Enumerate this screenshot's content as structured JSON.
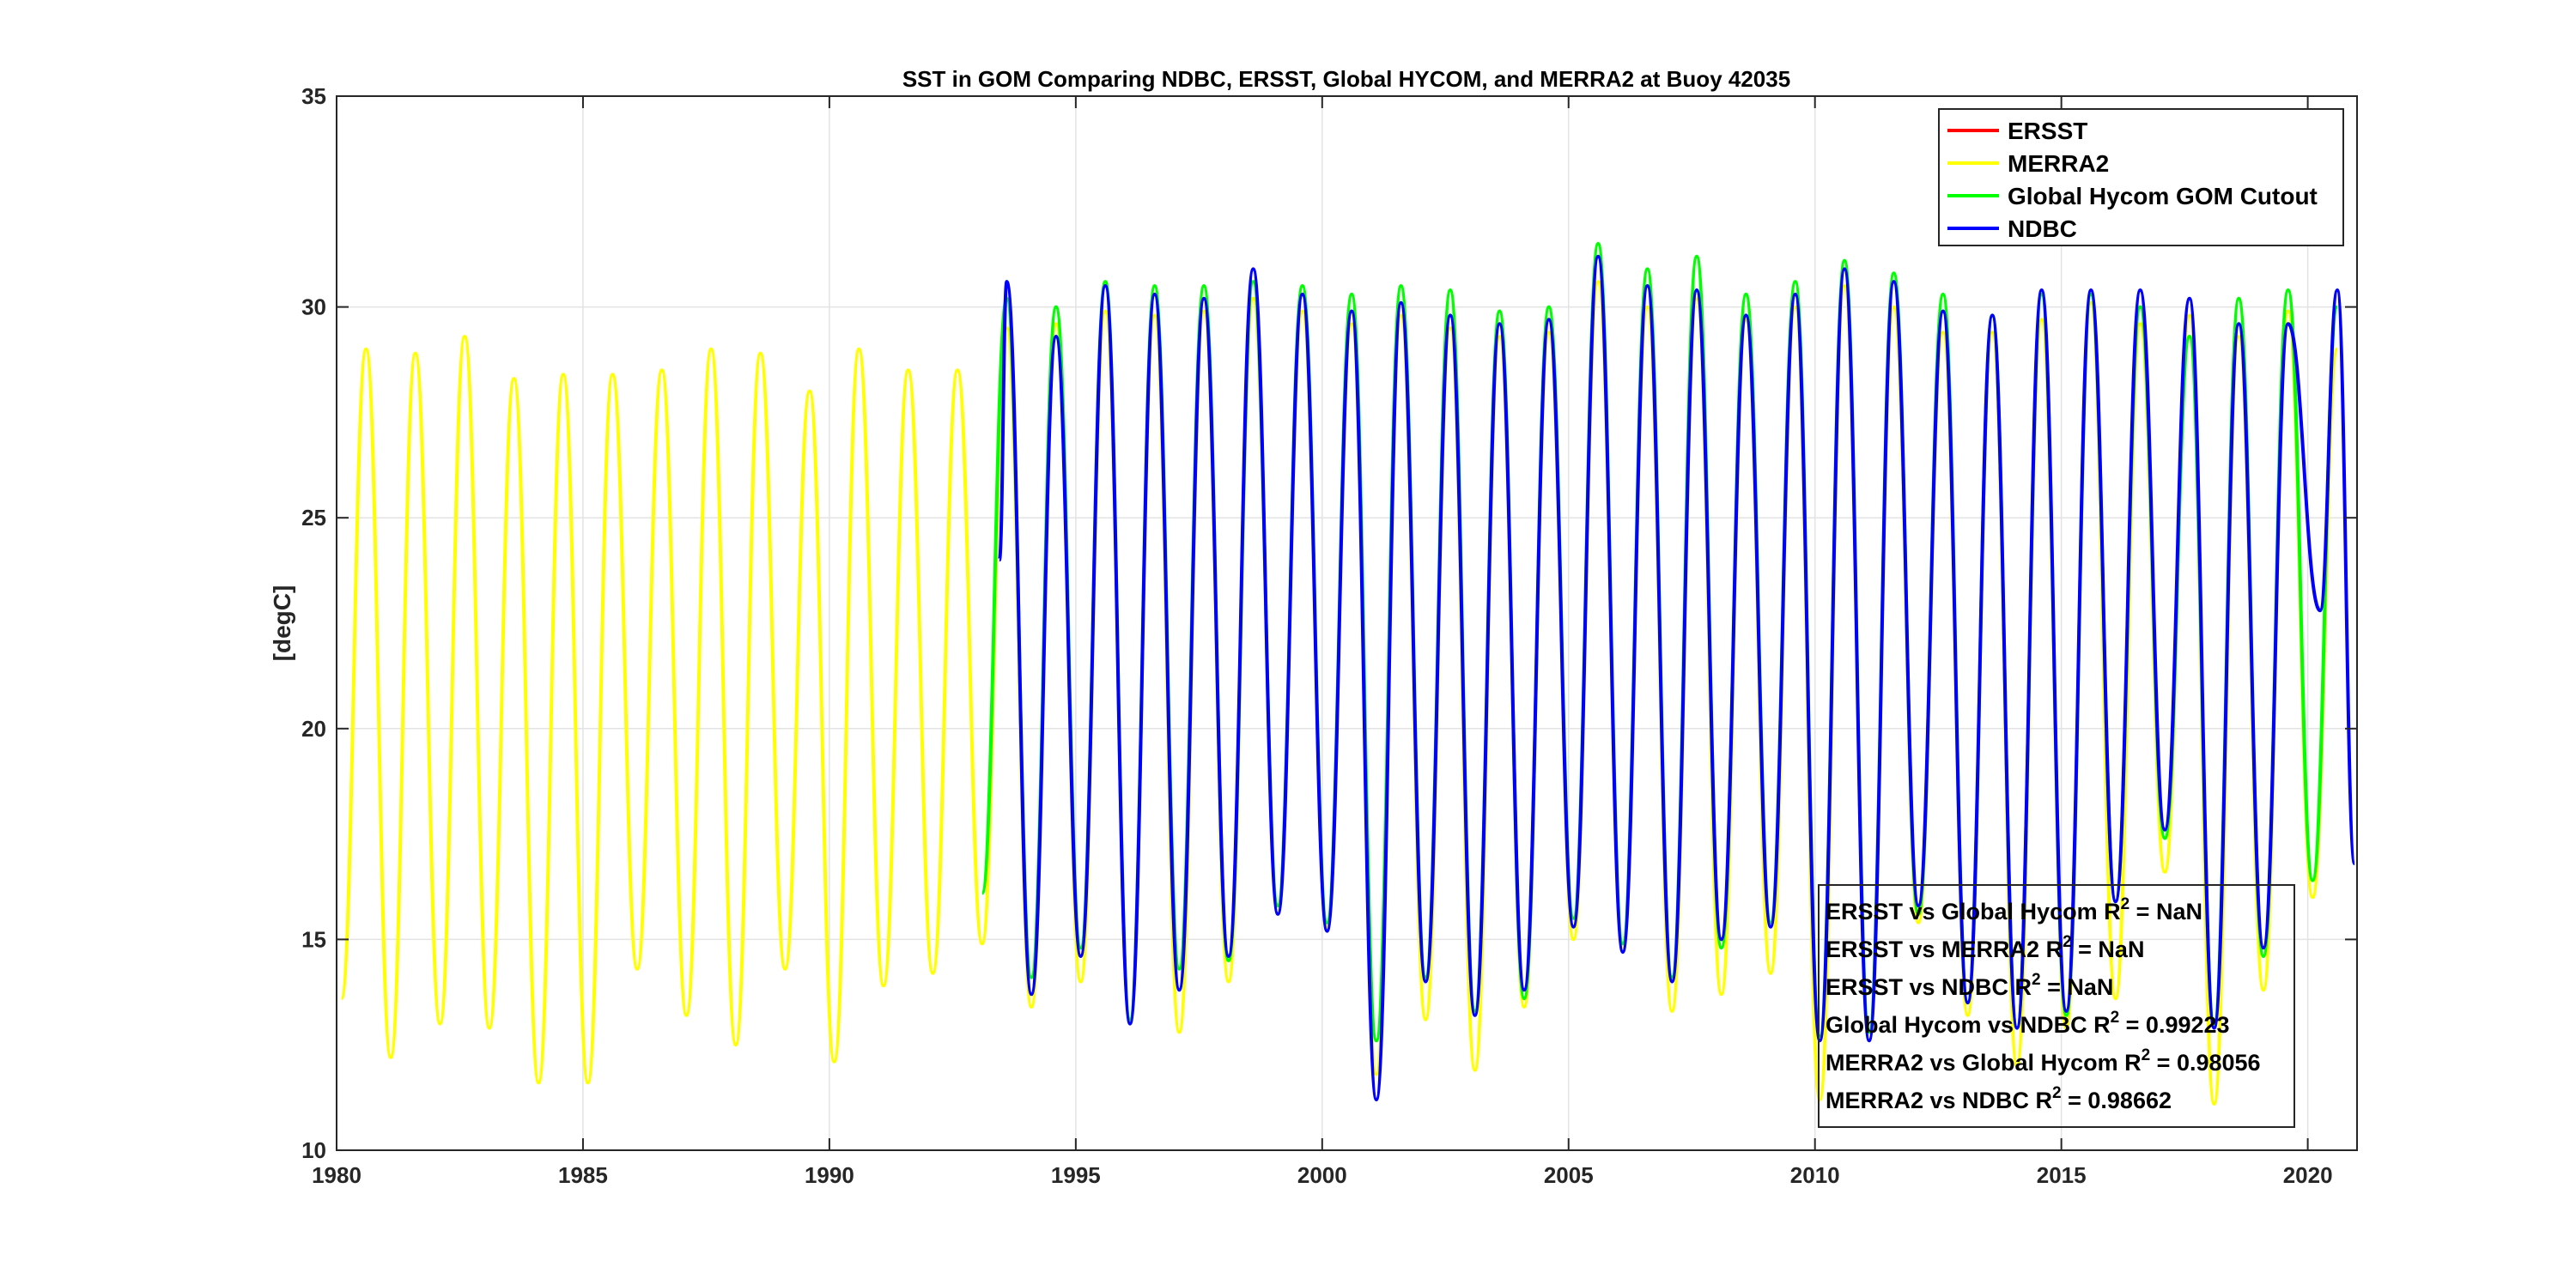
{
  "chart_data": {
    "type": "line",
    "title": "SST in GOM Comparing NDBC, ERSST, Global HYCOM, and MERRA2 at Buoy  42035",
    "xlabel": "",
    "ylabel": "[degC]",
    "xlim": [
      1980,
      2021
    ],
    "ylim": [
      10,
      35
    ],
    "grid": true,
    "legend_position": "top-right",
    "x_ticks": [
      1980,
      1985,
      1990,
      1995,
      2000,
      2005,
      2010,
      2015,
      2020
    ],
    "y_ticks": [
      10,
      15,
      20,
      25,
      30,
      35
    ],
    "x_tick_labels": [
      "1980",
      "1985",
      "1990",
      "1995",
      "2000",
      "2005",
      "2010",
      "2015",
      "2020"
    ],
    "y_tick_labels": [
      "10",
      "15",
      "20",
      "25",
      "30",
      "35"
    ],
    "series": [
      {
        "name": "ERSST",
        "color": "#ff0000",
        "peaks": [],
        "troughs": []
      },
      {
        "name": "MERRA2",
        "color": "#ffff00",
        "peaks": [
          [
            1980.6,
            29.0
          ],
          [
            1981.6,
            28.9
          ],
          [
            1982.6,
            29.3
          ],
          [
            1983.6,
            28.3
          ],
          [
            1984.6,
            28.4
          ],
          [
            1985.6,
            28.4
          ],
          [
            1986.6,
            28.5
          ],
          [
            1987.6,
            29.0
          ],
          [
            1988.6,
            28.9
          ],
          [
            1989.6,
            28.0
          ],
          [
            1990.6,
            29.0
          ],
          [
            1991.6,
            28.5
          ],
          [
            1992.6,
            28.5
          ],
          [
            1993.6,
            29.5
          ],
          [
            1994.6,
            29.6
          ],
          [
            1995.6,
            29.9
          ],
          [
            1996.6,
            29.8
          ],
          [
            1997.6,
            29.9
          ],
          [
            1998.6,
            30.2
          ],
          [
            1999.6,
            29.9
          ],
          [
            2000.6,
            29.6
          ],
          [
            2001.6,
            29.8
          ],
          [
            2002.6,
            29.5
          ],
          [
            2003.6,
            29.3
          ],
          [
            2004.6,
            29.4
          ],
          [
            2005.6,
            30.6
          ],
          [
            2006.6,
            30.0
          ],
          [
            2007.6,
            30.2
          ],
          [
            2008.6,
            29.7
          ],
          [
            2009.6,
            30.0
          ],
          [
            2010.6,
            30.5
          ],
          [
            2011.6,
            30.0
          ],
          [
            2012.6,
            29.4
          ],
          [
            2013.6,
            29.4
          ],
          [
            2014.6,
            29.7
          ],
          [
            2015.6,
            30.1
          ],
          [
            2016.6,
            29.6
          ],
          [
            2017.6,
            29.8
          ],
          [
            2018.6,
            29.3
          ],
          [
            2019.6,
            29.9
          ],
          [
            2020.6,
            29.0
          ]
        ],
        "troughs": [
          [
            1980.1,
            13.6
          ],
          [
            1981.1,
            12.2
          ],
          [
            1982.1,
            13.0
          ],
          [
            1983.1,
            12.9
          ],
          [
            1984.1,
            11.6
          ],
          [
            1985.1,
            11.6
          ],
          [
            1986.1,
            14.3
          ],
          [
            1987.1,
            13.2
          ],
          [
            1988.1,
            12.5
          ],
          [
            1989.1,
            14.3
          ],
          [
            1990.1,
            12.1
          ],
          [
            1991.1,
            13.9
          ],
          [
            1992.1,
            14.2
          ],
          [
            1993.1,
            14.9
          ],
          [
            1994.1,
            13.4
          ],
          [
            1995.1,
            14.0
          ],
          [
            1996.1,
            13.1
          ],
          [
            1997.1,
            12.8
          ],
          [
            1998.1,
            14.0
          ],
          [
            1999.1,
            15.8
          ],
          [
            2000.1,
            15.3
          ],
          [
            2001.1,
            11.8
          ],
          [
            2002.1,
            13.1
          ],
          [
            2003.1,
            11.9
          ],
          [
            2004.1,
            13.4
          ],
          [
            2005.1,
            15.0
          ],
          [
            2006.1,
            14.8
          ],
          [
            2007.1,
            13.3
          ],
          [
            2008.1,
            13.7
          ],
          [
            2009.1,
            14.2
          ],
          [
            2010.1,
            11.2
          ],
          [
            2011.1,
            12.6
          ],
          [
            2012.1,
            15.4
          ],
          [
            2013.1,
            13.2
          ],
          [
            2014.1,
            12.0
          ],
          [
            2015.1,
            12.9
          ],
          [
            2016.1,
            13.6
          ],
          [
            2017.1,
            16.6
          ],
          [
            2018.1,
            11.1
          ],
          [
            2019.1,
            13.8
          ],
          [
            2020.1,
            16.0
          ]
        ]
      },
      {
        "name": "Global Hycom GOM Cutout",
        "color": "#00ff00",
        "peaks": [
          [
            1993.6,
            30.2
          ],
          [
            1994.6,
            30.0
          ],
          [
            1995.6,
            30.6
          ],
          [
            1996.6,
            30.5
          ],
          [
            1997.6,
            30.5
          ],
          [
            1998.6,
            30.6
          ],
          [
            1999.6,
            30.5
          ],
          [
            2000.6,
            30.3
          ],
          [
            2001.6,
            30.5
          ],
          [
            2002.6,
            30.4
          ],
          [
            2003.6,
            29.9
          ],
          [
            2004.6,
            30.0
          ],
          [
            2005.6,
            31.5
          ],
          [
            2006.6,
            30.9
          ],
          [
            2007.6,
            31.2
          ],
          [
            2008.6,
            30.3
          ],
          [
            2009.6,
            30.6
          ],
          [
            2010.6,
            31.1
          ],
          [
            2011.6,
            30.8
          ],
          [
            2012.6,
            30.3
          ],
          [
            2013.6,
            29.8
          ],
          [
            2014.6,
            30.3
          ],
          [
            2015.6,
            30.3
          ],
          [
            2016.6,
            30.0
          ],
          [
            2017.6,
            29.3
          ],
          [
            2018.6,
            30.2
          ],
          [
            2019.6,
            30.4
          ],
          [
            2020.6,
            30.0
          ]
        ],
        "troughs": [
          [
            1993.1,
            16.1
          ],
          [
            1994.1,
            14.1
          ],
          [
            1995.1,
            14.8
          ],
          [
            1996.1,
            13.1
          ],
          [
            1997.1,
            14.3
          ],
          [
            1998.1,
            14.5
          ],
          [
            1999.1,
            15.8
          ],
          [
            2000.1,
            15.4
          ],
          [
            2001.1,
            12.6
          ],
          [
            2002.1,
            14.1
          ],
          [
            2003.1,
            13.3
          ],
          [
            2004.1,
            13.6
          ],
          [
            2005.1,
            15.5
          ],
          [
            2006.1,
            14.9
          ],
          [
            2007.1,
            14.1
          ],
          [
            2008.1,
            14.8
          ],
          [
            2009.1,
            15.4
          ],
          [
            2010.1,
            12.7
          ],
          [
            2011.1,
            12.8
          ],
          [
            2012.1,
            15.6
          ],
          [
            2013.1,
            13.5
          ],
          [
            2014.1,
            12.9
          ],
          [
            2015.1,
            13.2
          ],
          [
            2016.1,
            15.9
          ],
          [
            2017.1,
            17.4
          ],
          [
            2018.1,
            13.0
          ],
          [
            2019.1,
            14.6
          ],
          [
            2020.1,
            16.4
          ]
        ]
      },
      {
        "name": "NDBC",
        "color": "#0000ff",
        "peaks": [
          [
            1993.6,
            30.6
          ],
          [
            1994.6,
            29.3
          ],
          [
            1995.6,
            30.5
          ],
          [
            1996.6,
            30.3
          ],
          [
            1997.6,
            30.2
          ],
          [
            1998.6,
            30.9
          ],
          [
            1999.6,
            30.3
          ],
          [
            2000.6,
            29.9
          ],
          [
            2001.6,
            30.1
          ],
          [
            2002.6,
            29.8
          ],
          [
            2003.6,
            29.6
          ],
          [
            2004.6,
            29.7
          ],
          [
            2005.6,
            31.2
          ],
          [
            2006.6,
            30.5
          ],
          [
            2007.6,
            30.4
          ],
          [
            2008.6,
            29.8
          ],
          [
            2009.6,
            30.3
          ],
          [
            2010.6,
            30.9
          ],
          [
            2011.6,
            30.6
          ],
          [
            2012.6,
            29.9
          ],
          [
            2013.6,
            29.8
          ],
          [
            2014.6,
            30.4
          ],
          [
            2015.6,
            30.4
          ],
          [
            2016.6,
            30.4
          ],
          [
            2017.6,
            30.2
          ],
          [
            2018.6,
            29.6
          ],
          [
            2019.6,
            29.6
          ],
          [
            2020.6,
            30.4
          ]
        ],
        "troughs": [
          [
            1993.45,
            24.0
          ],
          [
            1994.1,
            13.7
          ],
          [
            1995.1,
            14.6
          ],
          [
            1996.1,
            13.0
          ],
          [
            1997.1,
            13.8
          ],
          [
            1998.1,
            14.6
          ],
          [
            1999.1,
            15.6
          ],
          [
            2000.1,
            15.2
          ],
          [
            2001.1,
            11.2
          ],
          [
            2002.1,
            14.0
          ],
          [
            2003.1,
            13.2
          ],
          [
            2004.1,
            13.8
          ],
          [
            2005.1,
            15.3
          ],
          [
            2006.1,
            14.7
          ],
          [
            2007.1,
            14.0
          ],
          [
            2008.1,
            15.0
          ],
          [
            2009.1,
            15.3
          ],
          [
            2010.1,
            12.6
          ],
          [
            2011.1,
            12.6
          ],
          [
            2012.1,
            15.8
          ],
          [
            2013.1,
            13.5
          ],
          [
            2014.1,
            12.9
          ],
          [
            2015.1,
            13.3
          ],
          [
            2016.1,
            15.9
          ],
          [
            2017.1,
            17.6
          ],
          [
            2018.1,
            12.9
          ],
          [
            2019.1,
            14.8
          ],
          [
            2020.25,
            22.8
          ],
          [
            2020.95,
            16.8
          ]
        ]
      }
    ],
    "annotations": [
      {
        "text": "ERSST vs Global Hycom R",
        "sup": "2",
        "rest": " = NaN"
      },
      {
        "text": "ERSST vs MERRA2 R",
        "sup": "2",
        "rest": " = NaN"
      },
      {
        "text": "ERSST vs NDBC R",
        "sup": "2",
        "rest": " = NaN"
      },
      {
        "text": "Global Hycom vs NDBC R",
        "sup": "2",
        "rest": " = 0.99223"
      },
      {
        "text": "MERRA2 vs Global Hycom R",
        "sup": "2",
        "rest": " = 0.98056"
      },
      {
        "text": "MERRA2 vs NDBC R",
        "sup": "2",
        "rest": " = 0.98662"
      }
    ]
  }
}
